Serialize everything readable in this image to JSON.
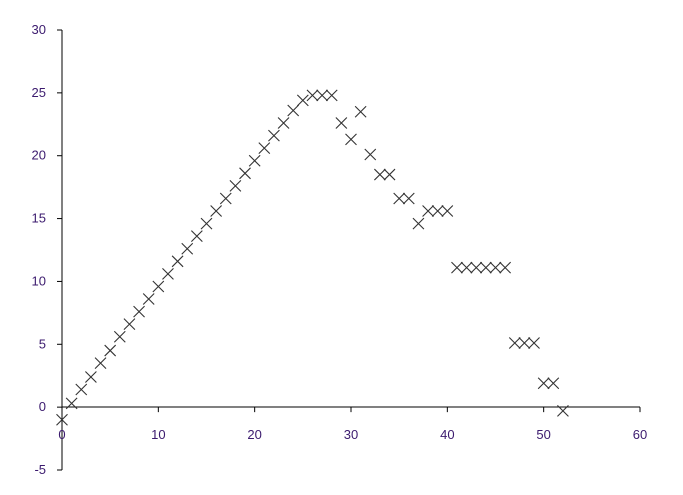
{
  "chart_data": {
    "type": "scatter",
    "title": "",
    "xlabel": "",
    "ylabel": "",
    "xlim": [
      0,
      60
    ],
    "ylim": [
      -5,
      30
    ],
    "x_ticks": [
      0,
      10,
      20,
      30,
      40,
      50,
      60
    ],
    "y_ticks": [
      -5,
      0,
      5,
      10,
      15,
      20,
      25,
      30
    ],
    "x_tick_labels": [
      "0",
      "10",
      "20",
      "30",
      "40",
      "50",
      "60"
    ],
    "y_tick_labels": [
      "-5",
      "0",
      "5",
      "10",
      "15",
      "20",
      "25",
      "30"
    ],
    "grid": false,
    "legend": "none",
    "marker": "x",
    "colors": {
      "marker": "#333333",
      "axis": "#000000",
      "tick_label": "#3b1a6e"
    },
    "series": [
      {
        "points": [
          [
            0,
            -1.0
          ],
          [
            1,
            0.3
          ],
          [
            2,
            1.4
          ],
          [
            3,
            2.4
          ],
          [
            4,
            3.5
          ],
          [
            5,
            4.5
          ],
          [
            6,
            5.6
          ],
          [
            7,
            6.6
          ],
          [
            8,
            7.6
          ],
          [
            9,
            8.6
          ],
          [
            10,
            9.6
          ],
          [
            11,
            10.6
          ],
          [
            12,
            11.6
          ],
          [
            13,
            12.6
          ],
          [
            14,
            13.6
          ],
          [
            15,
            14.6
          ],
          [
            16,
            15.6
          ],
          [
            17,
            16.6
          ],
          [
            18,
            17.6
          ],
          [
            19,
            18.6
          ],
          [
            20,
            19.6
          ],
          [
            21,
            20.6
          ],
          [
            22,
            21.6
          ],
          [
            23,
            22.6
          ],
          [
            24,
            23.6
          ],
          [
            25,
            24.4
          ],
          [
            26,
            24.8
          ],
          [
            27,
            24.8
          ],
          [
            28,
            24.8
          ],
          [
            29,
            22.6
          ],
          [
            30,
            21.3
          ],
          [
            31,
            23.5
          ],
          [
            32,
            20.1
          ],
          [
            33,
            18.5
          ],
          [
            34,
            18.5
          ],
          [
            35,
            16.6
          ],
          [
            36,
            16.6
          ],
          [
            37,
            14.6
          ],
          [
            38,
            15.6
          ],
          [
            39,
            15.6
          ],
          [
            40,
            15.6
          ],
          [
            41,
            11.1
          ],
          [
            42,
            11.1
          ],
          [
            43,
            11.1
          ],
          [
            44,
            11.1
          ],
          [
            45,
            11.1
          ],
          [
            46,
            11.1
          ],
          [
            47,
            5.1
          ],
          [
            48,
            5.1
          ],
          [
            49,
            5.1
          ],
          [
            50,
            1.9
          ],
          [
            51,
            1.9
          ],
          [
            52,
            -0.3
          ]
        ]
      }
    ]
  }
}
